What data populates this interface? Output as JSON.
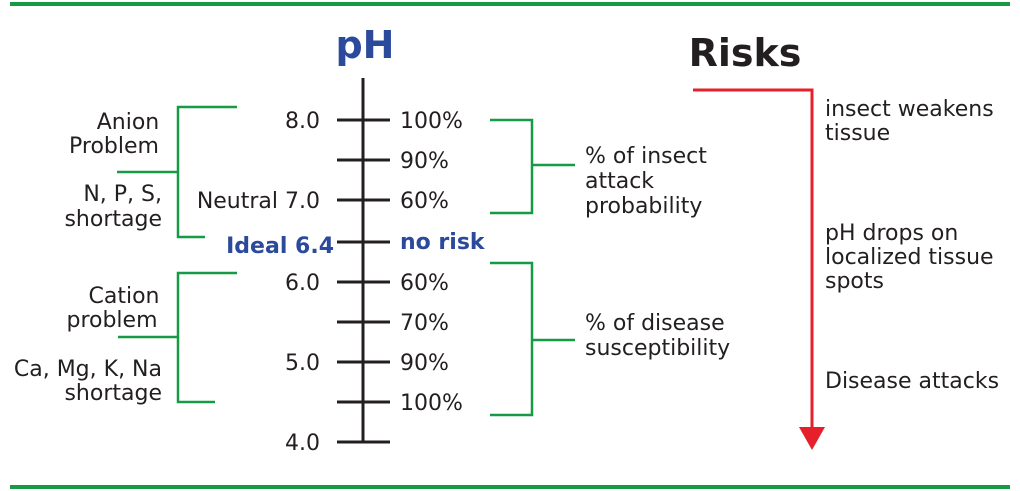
{
  "title": "pH",
  "risks_title": "Risks",
  "left_scale": [
    "8.0",
    "Neutral 7.0",
    "Ideal 6.4",
    "6.0",
    "5.0",
    "4.0"
  ],
  "right_scale": [
    "100%",
    "90%",
    "60%",
    "no risk",
    "60%",
    "70%",
    "90%",
    "100%"
  ],
  "left_groups": {
    "anion": [
      "Anion",
      "Problem"
    ],
    "anion_shortage": [
      "N, P, S,",
      "shortage"
    ],
    "cation": [
      "Cation",
      "problem"
    ],
    "cation_shortage": [
      "Ca, Mg, K, Na",
      "shortage"
    ]
  },
  "right_groups": {
    "insect": [
      "% of insect",
      "attack",
      "probability"
    ],
    "disease": [
      "% of disease",
      "susceptibility"
    ]
  },
  "risks": {
    "insect": [
      "insect weakens",
      "tissue"
    ],
    "ph_drop": [
      "pH drops on",
      "localized tissue",
      "spots"
    ],
    "disease": [
      "Disease attacks"
    ]
  },
  "colors": {
    "green": "#179a45",
    "blue": "#2b4a9c",
    "red": "#e5202a"
  }
}
